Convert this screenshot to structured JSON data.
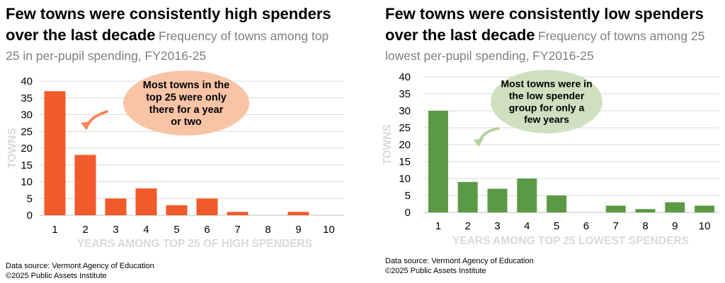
{
  "charts": [
    {
      "title_bold": "Few towns were consistently high spenders over the last decade",
      "subtitle": "Frequency of towns among top 25 in per-pupil spending, FY2016-25",
      "callout": "Most towns in the top 25 were only there for a year or two",
      "source": "Data source: Vermont Agency of Education",
      "copyright": "©2025 Public Assets Institute",
      "colors": {
        "bar": "#f15a2b",
        "callout_fill": "#f9c4a6",
        "arrow": "#f4875e"
      },
      "chart_data": {
        "type": "bar",
        "categories": [
          "1",
          "2",
          "3",
          "4",
          "5",
          "6",
          "7",
          "8",
          "9",
          "10"
        ],
        "values": [
          37,
          18,
          5,
          8,
          3,
          5,
          1,
          0,
          1,
          0
        ],
        "ylim": [
          0,
          40
        ],
        "yticks": [
          "0",
          "5",
          "10",
          "15",
          "20",
          "25",
          "30",
          "35",
          "40"
        ],
        "ylabel": "TOWNS",
        "xlabel": "YEARS AMONG TOP 25 OF HIGH SPENDERS",
        "grid": true
      }
    },
    {
      "title_bold": "Few towns were consistently low spenders over the last decade",
      "subtitle": "Frequency of towns among 25 lowest per-pupil spending, FY2016-25",
      "callout": "Most towns were in the low spender group for only a few years",
      "source": "Data source: Vermont Agency of Education",
      "copyright": "©2025 Public Assets Institute",
      "colors": {
        "bar": "#5b9a44",
        "callout_fill": "#cfe0c0",
        "arrow": "#b5d19c"
      },
      "chart_data": {
        "type": "bar",
        "categories": [
          "1",
          "2",
          "3",
          "4",
          "5",
          "6",
          "7",
          "8",
          "9",
          "10"
        ],
        "values": [
          30,
          9,
          7,
          10,
          5,
          0,
          2,
          1,
          3,
          2
        ],
        "ylim": [
          0,
          40
        ],
        "yticks": [
          "0",
          "5",
          "10",
          "15",
          "20",
          "25",
          "30",
          "35",
          "40"
        ],
        "ylabel": "TOWNS",
        "xlabel": "YEARS AMONG TOP 25 LOWEST SPENDERS",
        "grid": true
      }
    }
  ]
}
